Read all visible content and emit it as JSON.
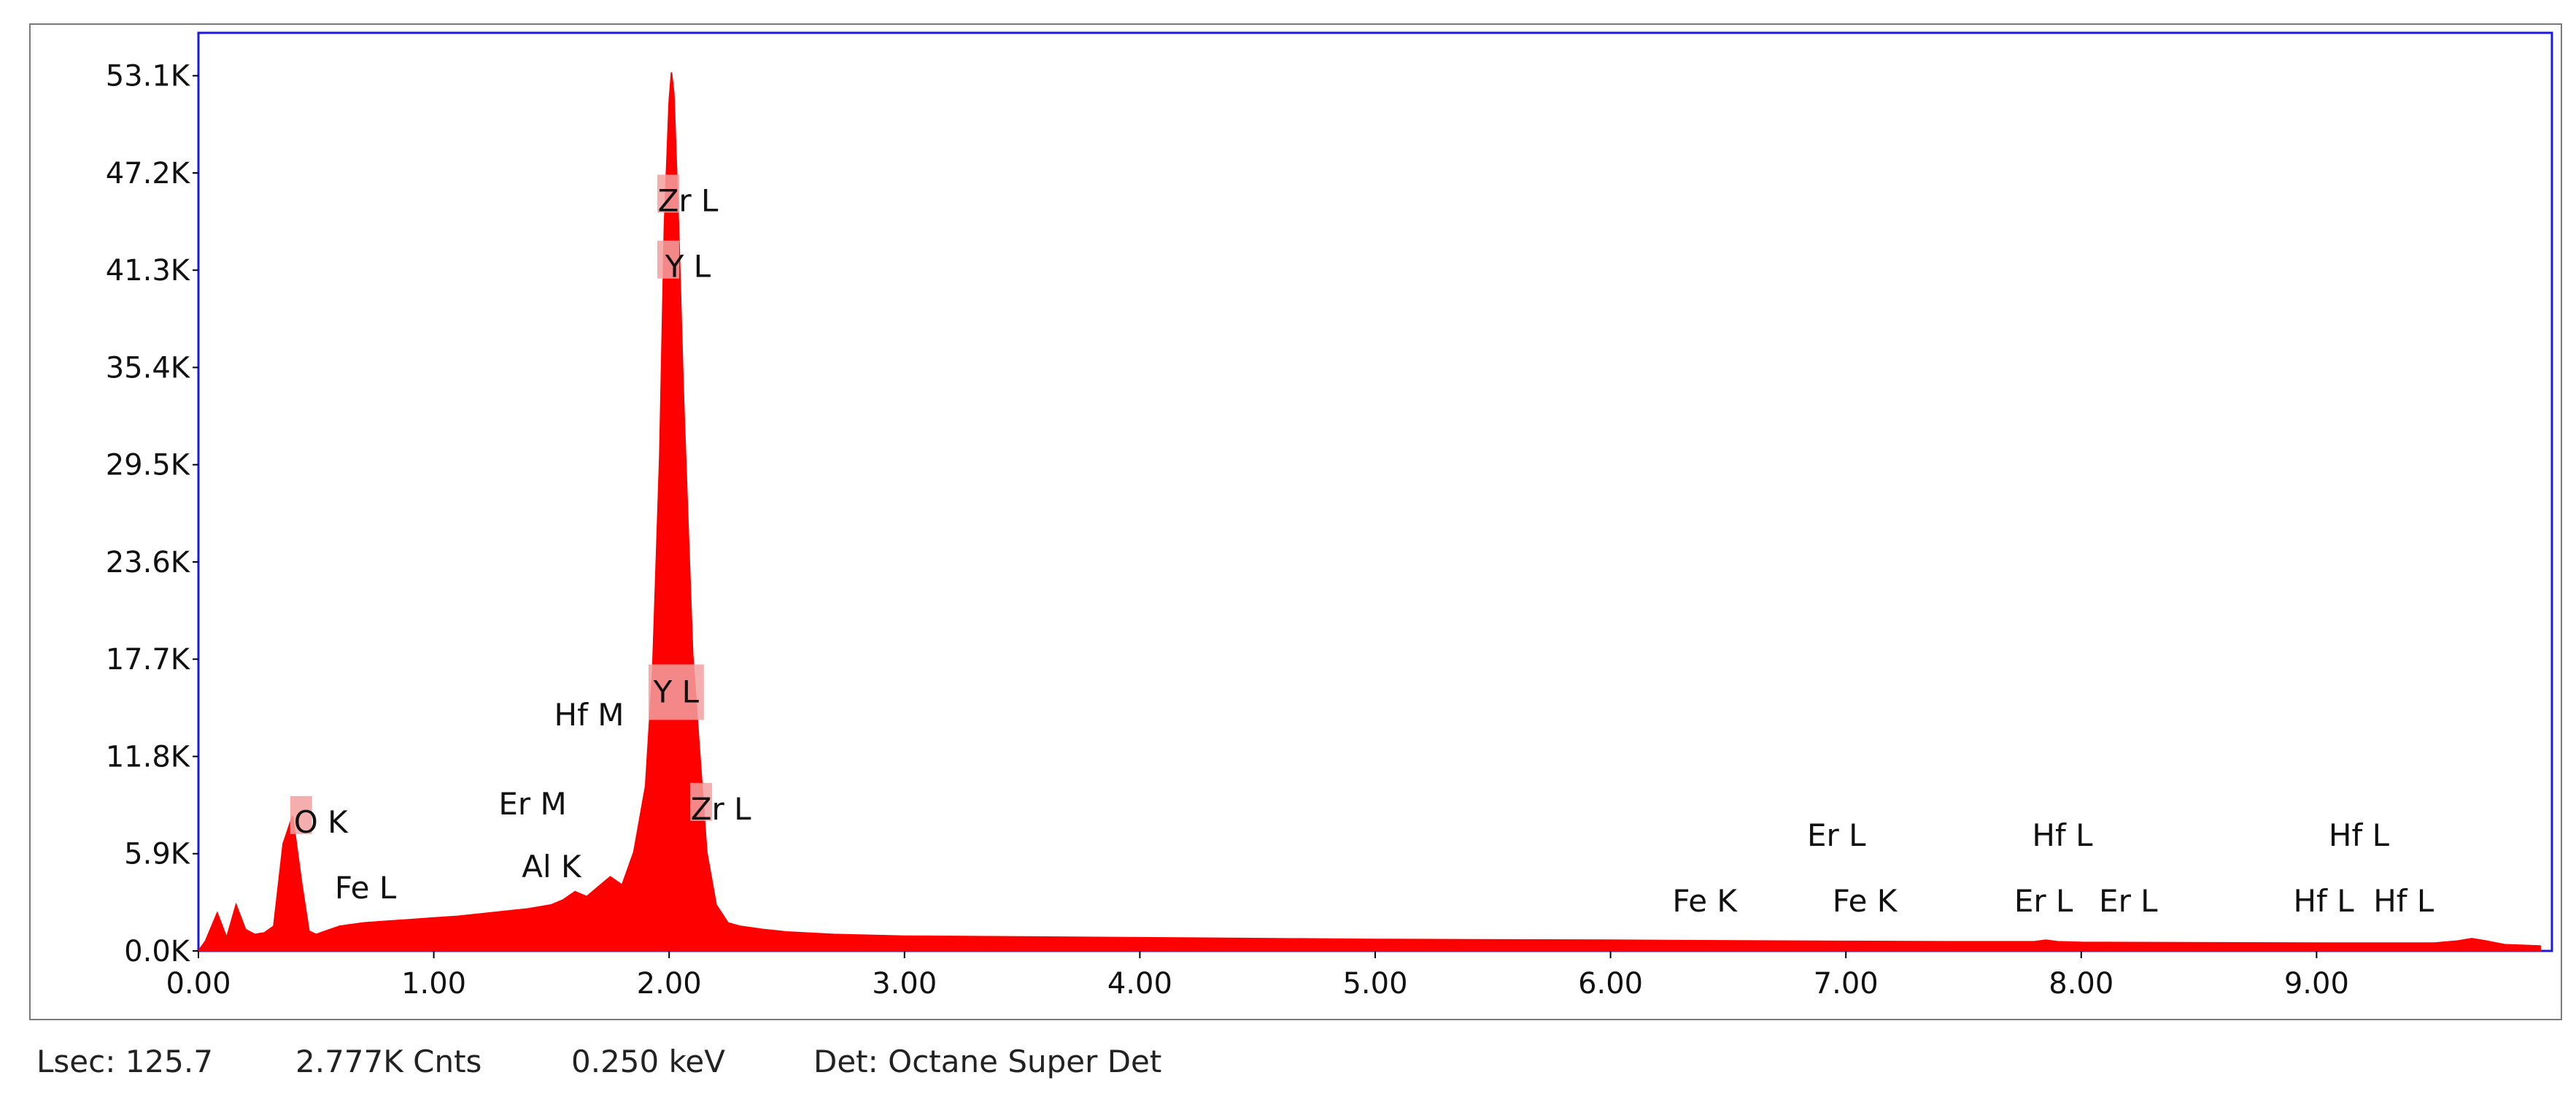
{
  "status": {
    "lsec": "Lsec: 125.7",
    "counts": "2.777K Cnts",
    "kev": "0.250 keV",
    "detector": "Det: Octane Super Det"
  },
  "colors": {
    "spectrum": "#ff0000",
    "plot_border": "#1a1adc",
    "label_highlight": "#f2a0a0",
    "frame_border": "#7a7a7a"
  },
  "chart_data": {
    "type": "area",
    "title": "",
    "xlabel": "",
    "ylabel": "",
    "xlim": [
      0.0,
      10.0
    ],
    "ylim": [
      0,
      55700
    ],
    "grid": false,
    "x_ticks": [
      0.0,
      1.0,
      2.0,
      3.0,
      4.0,
      5.0,
      6.0,
      7.0,
      8.0,
      9.0
    ],
    "x_tick_labels": [
      "0.00",
      "1.00",
      "2.00",
      "3.00",
      "4.00",
      "5.00",
      "6.00",
      "7.00",
      "8.00",
      "9.00"
    ],
    "y_ticks": [
      0,
      5900,
      11800,
      17700,
      23600,
      29500,
      35400,
      41300,
      47200,
      53100
    ],
    "y_tick_labels": [
      "0.0K",
      "5.9K",
      "11.8K",
      "17.7K",
      "23.6K",
      "29.5K",
      "35.4K",
      "41.3K",
      "47.2K",
      "53.1K"
    ],
    "series": [
      {
        "x": [
          0.0,
          0.03,
          0.08,
          0.12,
          0.16,
          0.2,
          0.24,
          0.28,
          0.32,
          0.36,
          0.4,
          0.44,
          0.47,
          0.5,
          0.53,
          0.56,
          0.6,
          0.7,
          0.8,
          0.9,
          1.0,
          1.1,
          1.2,
          1.3,
          1.4,
          1.5,
          1.55,
          1.6,
          1.65,
          1.7,
          1.75,
          1.8,
          1.85,
          1.9,
          1.93,
          1.96,
          1.98,
          2.0,
          2.01,
          2.02,
          2.04,
          2.06,
          2.08,
          2.1,
          2.13,
          2.16,
          2.2,
          2.25,
          2.3,
          2.4,
          2.5,
          2.7,
          3.0,
          3.5,
          4.0,
          5.0,
          6.0,
          7.0,
          7.5,
          7.8,
          7.85,
          7.9,
          8.0,
          9.0,
          9.5,
          9.6,
          9.66,
          9.72,
          9.8,
          9.95
        ],
        "y": [
          0,
          600,
          2300,
          800,
          2800,
          1300,
          1000,
          1100,
          1500,
          6500,
          8200,
          4000,
          1200,
          1000,
          1150,
          1300,
          1500,
          1700,
          1800,
          1900,
          2000,
          2100,
          2250,
          2400,
          2550,
          2800,
          3100,
          3600,
          3300,
          3900,
          4500,
          4000,
          6000,
          10000,
          17000,
          30000,
          44000,
          51500,
          53300,
          52000,
          44000,
          34000,
          26000,
          18000,
          12000,
          6000,
          2800,
          1700,
          1500,
          1300,
          1150,
          1000,
          900,
          850,
          800,
          700,
          650,
          580,
          560,
          560,
          650,
          560,
          520,
          480,
          480,
          600,
          750,
          600,
          380,
          300
        ]
      }
    ],
    "annotations": [
      {
        "text": "O  K",
        "x": 0.52,
        "y": 7800,
        "highlight": "left"
      },
      {
        "text": "Fe L",
        "x": 0.71,
        "y": 3800,
        "highlight": ""
      },
      {
        "text": "Er M",
        "x": 1.42,
        "y": 8900,
        "highlight": ""
      },
      {
        "text": "Al K",
        "x": 1.5,
        "y": 5100,
        "highlight": ""
      },
      {
        "text": "Hf M",
        "x": 1.66,
        "y": 14300,
        "highlight": ""
      },
      {
        "text": "Y  L",
        "x": 2.03,
        "y": 15700,
        "highlight": "box"
      },
      {
        "text": "Zr L",
        "x": 2.22,
        "y": 8600,
        "highlight": "left"
      },
      {
        "text": "Zr L",
        "x": 2.08,
        "y": 45500,
        "highlight": "left"
      },
      {
        "text": "Y   L",
        "x": 2.08,
        "y": 41500,
        "highlight": "left"
      },
      {
        "text": "Fe K",
        "x": 6.4,
        "y": 3000,
        "highlight": ""
      },
      {
        "text": "Er L",
        "x": 6.96,
        "y": 7000,
        "highlight": ""
      },
      {
        "text": "Fe K",
        "x": 7.08,
        "y": 3000,
        "highlight": ""
      },
      {
        "text": "Hf L",
        "x": 7.92,
        "y": 7000,
        "highlight": ""
      },
      {
        "text": "Er L",
        "x": 7.84,
        "y": 3000,
        "highlight": ""
      },
      {
        "text": "Er L",
        "x": 8.2,
        "y": 3000,
        "highlight": ""
      },
      {
        "text": "Hf L",
        "x": 9.18,
        "y": 7000,
        "highlight": ""
      },
      {
        "text": "Hf L",
        "x": 9.03,
        "y": 3000,
        "highlight": ""
      },
      {
        "text": "Hf L",
        "x": 9.37,
        "y": 3000,
        "highlight": ""
      }
    ]
  }
}
